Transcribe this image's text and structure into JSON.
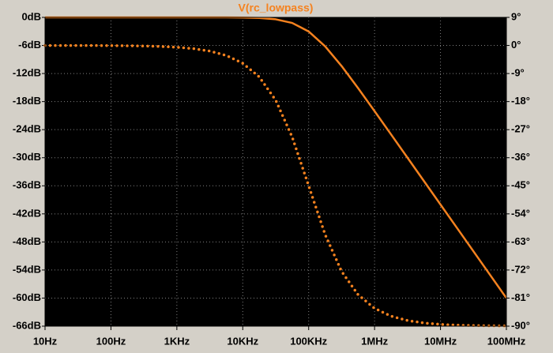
{
  "chart_data": {
    "type": "line",
    "title": "V(rc_lowpass)",
    "xscale": "log",
    "grid": true,
    "x": [
      10,
      17.78,
      31.62,
      56.23,
      100,
      177.8,
      316.2,
      562.3,
      1000,
      1778,
      3162,
      5623,
      10000,
      17780,
      31620,
      56230,
      100000,
      177800,
      316200,
      562300,
      1000000,
      1778000,
      3162000,
      5623000,
      10000000,
      17780000,
      31620000,
      56230000,
      100000000
    ],
    "xlim": [
      10,
      100000000
    ],
    "xticks": [
      {
        "value": 10,
        "label": "10Hz"
      },
      {
        "value": 100,
        "label": "100Hz"
      },
      {
        "value": 1000,
        "label": "1KHz"
      },
      {
        "value": 10000,
        "label": "10KHz"
      },
      {
        "value": 100000,
        "label": "100KHz"
      },
      {
        "value": 1000000,
        "label": "1MHz"
      },
      {
        "value": 10000000,
        "label": "10MHz"
      },
      {
        "value": 100000000,
        "label": "100MHz"
      }
    ],
    "ylim": [
      -66,
      0
    ],
    "yticks": [
      {
        "value": 0,
        "label": "0dB"
      },
      {
        "value": -6,
        "label": "-6dB"
      },
      {
        "value": -12,
        "label": "-12dB"
      },
      {
        "value": -18,
        "label": "-18dB"
      },
      {
        "value": -24,
        "label": "-24dB"
      },
      {
        "value": -30,
        "label": "-30dB"
      },
      {
        "value": -36,
        "label": "-36dB"
      },
      {
        "value": -42,
        "label": "-42dB"
      },
      {
        "value": -48,
        "label": "-48dB"
      },
      {
        "value": -54,
        "label": "-54dB"
      },
      {
        "value": -60,
        "label": "-60dB"
      },
      {
        "value": -66,
        "label": "-66dB"
      }
    ],
    "y2lim": [
      -90,
      9
    ],
    "y2ticks": [
      {
        "value": 9,
        "label": "9°"
      },
      {
        "value": 0,
        "label": "0°"
      },
      {
        "value": -9,
        "label": "-9°"
      },
      {
        "value": -18,
        "label": "-18°"
      },
      {
        "value": -27,
        "label": "-27°"
      },
      {
        "value": -36,
        "label": "-36°"
      },
      {
        "value": -45,
        "label": "-45°"
      },
      {
        "value": -54,
        "label": "-54°"
      },
      {
        "value": -63,
        "label": "-63°"
      },
      {
        "value": -72,
        "label": "-72°"
      },
      {
        "value": -81,
        "label": "-81°"
      },
      {
        "value": -90,
        "label": "-90°"
      }
    ],
    "series": [
      {
        "color": "#f5821f",
        "style": "solid",
        "values": [
          0,
          0,
          0,
          0,
          0,
          0,
          0,
          0,
          0,
          0,
          0,
          -0.01,
          -0.04,
          -0.13,
          -0.41,
          -1.19,
          -3.01,
          -6.19,
          -10.41,
          -15.13,
          -20.04,
          -25.01,
          -30,
          -35,
          -40,
          -45,
          -50,
          -55,
          -60
        ]
      },
      {
        "color": "#f5821f",
        "style": "dotted",
        "axis": "y2",
        "values": [
          -0.01,
          -0.01,
          -0.02,
          -0.03,
          -0.06,
          -0.1,
          -0.18,
          -0.32,
          -0.57,
          -1.02,
          -1.81,
          -3.22,
          -5.71,
          -10.08,
          -17.55,
          -29.36,
          -45,
          -60.64,
          -72.45,
          -79.92,
          -84.29,
          -86.78,
          -88.19,
          -88.98,
          -89.43,
          -89.68,
          -89.82,
          -89.9,
          -89.94
        ]
      }
    ]
  }
}
